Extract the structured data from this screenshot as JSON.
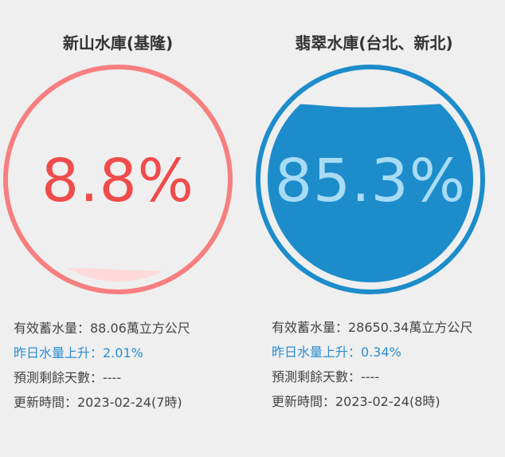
{
  "reservoirs": [
    {
      "name": "新山水庫(基隆)",
      "percent_text": "8.8%",
      "percent_value": 8.8,
      "capacity": "有效蓄水量：88.06萬立方公尺",
      "change": "昨日水量上升：2.01%",
      "forecast": "預測剩餘天數：----",
      "updated": "更新時間：2023-02-24(7時)",
      "colors": {
        "ring": "#f77f7f",
        "text": "#f04b4b",
        "fill": "#ffd9d9",
        "change": "#2b8ecf"
      }
    },
    {
      "name": "翡翠水庫(台北、新北)",
      "percent_text": "85.3%",
      "percent_value": 85.3,
      "capacity": "有效蓄水量：28650.34萬立方公尺",
      "change": "昨日水量上升：0.34%",
      "forecast": "預測剩餘天數：----",
      "updated": "更新時間：2023-02-24(8時)",
      "colors": {
        "ring": "#1d8ccb",
        "text": "#a8dcf5",
        "fill": "#1d8ccb",
        "change": "#2b8ecf"
      }
    }
  ]
}
